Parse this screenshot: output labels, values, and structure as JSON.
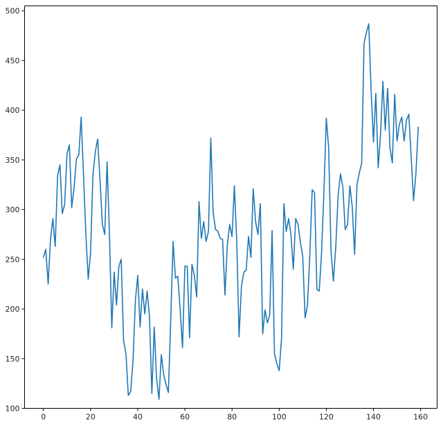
{
  "chart_data": {
    "type": "line",
    "title": "",
    "xlabel": "",
    "ylabel": "",
    "xlim": [
      -8,
      167
    ],
    "ylim": [
      100,
      505
    ],
    "grid": false,
    "legend": "none",
    "x_ticks": [
      0,
      20,
      40,
      60,
      80,
      100,
      120,
      140,
      160
    ],
    "y_ticks": [
      100,
      150,
      200,
      250,
      300,
      350,
      400,
      450,
      500
    ],
    "series": [
      {
        "color": "#1f77b4",
        "x_start": 0,
        "x_step": 1,
        "values": [
          252,
          260,
          225,
          270,
          291,
          263,
          334,
          345,
          296,
          305,
          356,
          365,
          302,
          322,
          351,
          355,
          393,
          335,
          275,
          230,
          257,
          335,
          358,
          371,
          330,
          285,
          275,
          348,
          276,
          181,
          237,
          204,
          243,
          250,
          168,
          155,
          113,
          117,
          148,
          208,
          234,
          182,
          220,
          195,
          218,
          192,
          115,
          182,
          130,
          109,
          154,
          134,
          124,
          116,
          189,
          268,
          231,
          233,
          199,
          161,
          243,
          243,
          171,
          245,
          234,
          212,
          308,
          271,
          288,
          268,
          278,
          372,
          297,
          280,
          278,
          271,
          270,
          214,
          264,
          285,
          273,
          324,
          268,
          172,
          223,
          237,
          239,
          273,
          252,
          321,
          288,
          275,
          306,
          175,
          199,
          186,
          194,
          279,
          155,
          145,
          138,
          170,
          306,
          278,
          291,
          275,
          240,
          291,
          285,
          267,
          253,
          191,
          204,
          254,
          320,
          317,
          220,
          218,
          257,
          319,
          392,
          362,
          258,
          228,
          262,
          314,
          336,
          323,
          280,
          285,
          324,
          303,
          255,
          325,
          337,
          347,
          467,
          478,
          487,
          420,
          368,
          417,
          342,
          376,
          429,
          380,
          422,
          362,
          347,
          416,
          369,
          386,
          393,
          369,
          390,
          396,
          353,
          309,
          336,
          383
        ]
      }
    ]
  }
}
